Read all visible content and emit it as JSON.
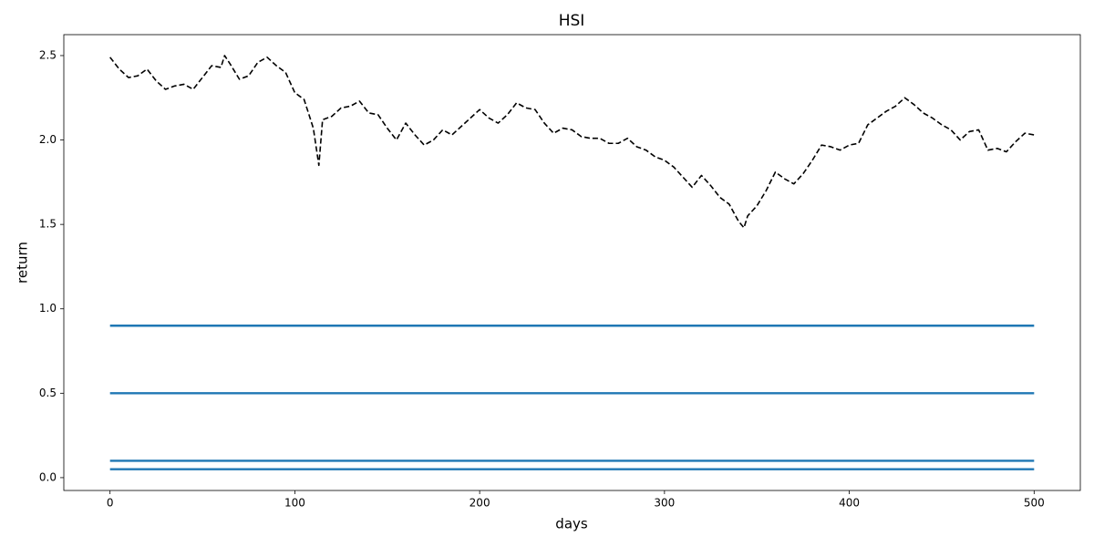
{
  "chart_data": {
    "type": "line",
    "title": "HSI",
    "x_label": "days",
    "y_label": "return",
    "xlim": [
      -25,
      525
    ],
    "ylim": [
      -0.076,
      2.624
    ],
    "xticks": [
      0,
      100,
      200,
      300,
      400,
      500
    ],
    "yticks": [
      {
        "value": 0,
        "label": "0.0"
      },
      0.5,
      {
        "value": 1,
        "label": "1.0"
      },
      1.5,
      {
        "value": 2,
        "label": "2.0"
      },
      2.5
    ],
    "grid": false,
    "series": [
      {
        "color": "#000000",
        "linestyle": "dashed",
        "x": [
          0,
          5,
          10,
          15,
          20,
          25,
          30,
          35,
          40,
          45,
          50,
          55,
          60,
          62,
          65,
          70,
          75,
          80,
          85,
          90,
          95,
          100,
          105,
          110,
          113,
          115,
          120,
          125,
          130,
          135,
          140,
          145,
          150,
          155,
          160,
          165,
          170,
          175,
          180,
          185,
          190,
          195,
          200,
          205,
          210,
          215,
          220,
          225,
          230,
          235,
          240,
          245,
          250,
          255,
          260,
          265,
          270,
          275,
          280,
          285,
          290,
          295,
          300,
          305,
          310,
          315,
          320,
          325,
          330,
          335,
          340,
          343,
          345,
          350,
          355,
          360,
          365,
          370,
          375,
          380,
          385,
          390,
          395,
          400,
          405,
          410,
          415,
          420,
          425,
          430,
          435,
          440,
          445,
          450,
          455,
          460,
          465,
          470,
          475,
          480,
          485,
          490,
          495,
          500
        ],
        "values": [
          2.49,
          2.42,
          2.37,
          2.38,
          2.42,
          2.35,
          2.3,
          2.32,
          2.33,
          2.3,
          2.37,
          2.44,
          2.43,
          2.5,
          2.45,
          2.36,
          2.38,
          2.46,
          2.49,
          2.44,
          2.4,
          2.28,
          2.24,
          2.07,
          1.85,
          2.12,
          2.14,
          2.19,
          2.2,
          2.23,
          2.16,
          2.15,
          2.07,
          2.0,
          2.1,
          2.03,
          1.97,
          2.0,
          2.06,
          2.03,
          2.08,
          2.13,
          2.18,
          2.13,
          2.1,
          2.15,
          2.22,
          2.19,
          2.18,
          2.1,
          2.04,
          2.07,
          2.06,
          2.02,
          2.01,
          2.01,
          1.98,
          1.98,
          2.01,
          1.96,
          1.94,
          1.9,
          1.88,
          1.84,
          1.78,
          1.72,
          1.79,
          1.73,
          1.66,
          1.62,
          1.52,
          1.48,
          1.55,
          1.61,
          1.7,
          1.81,
          1.77,
          1.74,
          1.8,
          1.88,
          1.97,
          1.96,
          1.94,
          1.97,
          1.98,
          2.09,
          2.13,
          2.17,
          2.2,
          2.25,
          2.21,
          2.16,
          2.13,
          2.09,
          2.06,
          2.0,
          2.05,
          2.06,
          1.94,
          1.95,
          1.93,
          1.99,
          2.04,
          2.03
        ]
      },
      {
        "color": "#1f77b4",
        "linestyle": "solid",
        "x": [
          0,
          500
        ],
        "values": [
          0.9,
          0.9
        ]
      },
      {
        "color": "#1f77b4",
        "linestyle": "solid",
        "x": [
          0,
          500
        ],
        "values": [
          0.5,
          0.5
        ]
      },
      {
        "color": "#1f77b4",
        "linestyle": "solid",
        "x": [
          0,
          500
        ],
        "values": [
          0.1,
          0.1
        ]
      },
      {
        "color": "#1f77b4",
        "linestyle": "solid",
        "x": [
          0,
          500
        ],
        "values": [
          0.05,
          0.05
        ]
      }
    ]
  }
}
